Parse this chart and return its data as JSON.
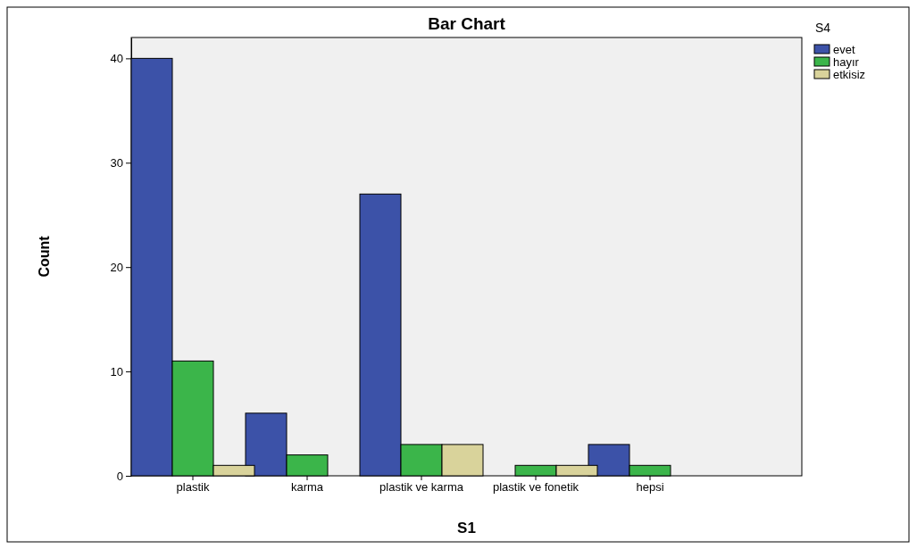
{
  "chart_data": {
    "type": "bar",
    "title": "Bar Chart",
    "xlabel": "S1",
    "ylabel": "Count",
    "legend_title": "S4",
    "categories": [
      "plastik",
      "karma",
      "plastik ve karma",
      "plastik ve fonetik",
      "hepsi"
    ],
    "series": [
      {
        "name": "evet",
        "color": "#3c52a8",
        "values": [
          40,
          6,
          27,
          0,
          3
        ]
      },
      {
        "name": "hayır",
        "color": "#3bb54a",
        "values": [
          11,
          2,
          3,
          1,
          1
        ]
      },
      {
        "name": "etkisiz",
        "color": "#d9d39b",
        "values": [
          1,
          0,
          3,
          1,
          0
        ]
      }
    ],
    "ylim": [
      0,
      42
    ],
    "yticks": [
      0,
      10,
      20,
      30,
      40
    ],
    "grid": false,
    "legend": "top right"
  }
}
